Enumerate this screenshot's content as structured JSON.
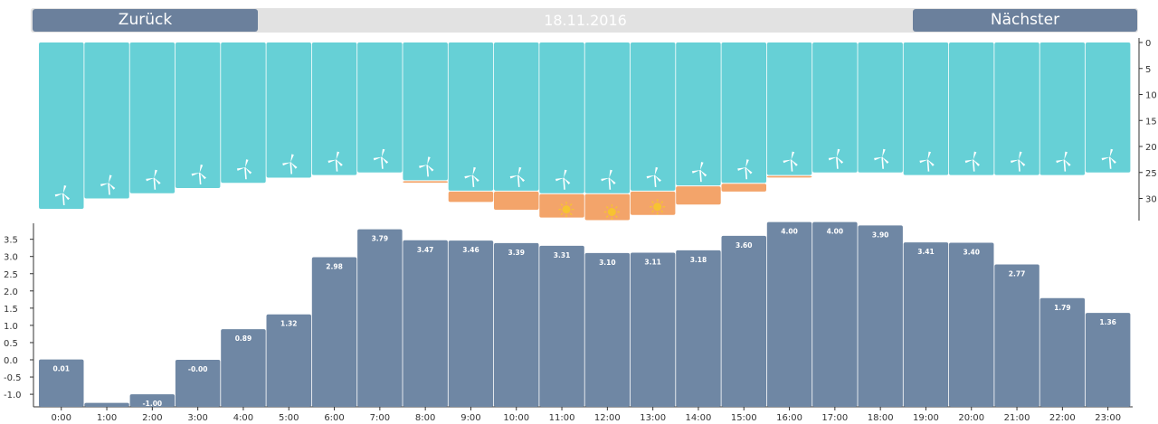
{
  "nav": {
    "back_label": "Zurück",
    "date": "18.11.2016",
    "next_label": "Nächster"
  },
  "colors": {
    "wind": "#66d0d6",
    "solar": "#f3a46a",
    "price": "#6f87a4",
    "sun_icon": "#f7c331",
    "nav_button": "#6b809c",
    "nav_bar": "#e2e2e2"
  },
  "chart_data": [
    {
      "type": "bar",
      "categories": [
        "0:00",
        "1:00",
        "2:00",
        "3:00",
        "4:00",
        "5:00",
        "6:00",
        "7:00",
        "8:00",
        "9:00",
        "10:00",
        "11:00",
        "12:00",
        "13:00",
        "14:00",
        "15:00",
        "16:00",
        "17:00",
        "18:00",
        "19:00",
        "20:00",
        "21:00",
        "22:00",
        "23:00"
      ],
      "series": [
        {
          "values": [
            32,
            30,
            29,
            28,
            27,
            26,
            25.5,
            25,
            26.5,
            28.5,
            28.5,
            29,
            29,
            28.5,
            27.5,
            27,
            25.5,
            25,
            25,
            25.5,
            25.5,
            25.5,
            25.5,
            25
          ]
        },
        {
          "values": [
            0,
            0,
            0,
            0,
            0,
            0,
            0,
            0,
            0.3,
            2,
            3.5,
            4.5,
            5,
            4.5,
            3.5,
            1.5,
            0.3,
            0,
            0,
            0,
            0,
            0,
            0,
            0
          ]
        }
      ],
      "stacked": true,
      "inverted_y": true,
      "yticks": [
        0,
        5,
        10,
        15,
        20,
        25,
        30
      ],
      "ylim": [
        0,
        34
      ],
      "icons": {
        "wind_turbine_icon": "all bars",
        "sun_icon": [
          "11:00",
          "12:00",
          "13:00"
        ]
      }
    },
    {
      "type": "bar",
      "categories": [
        "0:00",
        "1:00",
        "2:00",
        "3:00",
        "4:00",
        "5:00",
        "6:00",
        "7:00",
        "8:00",
        "9:00",
        "10:00",
        "11:00",
        "12:00",
        "13:00",
        "14:00",
        "15:00",
        "16:00",
        "17:00",
        "18:00",
        "19:00",
        "20:00",
        "21:00",
        "22:00",
        "23:00"
      ],
      "values": [
        0.01,
        -1.25,
        -1.0,
        -0.0,
        0.89,
        1.32,
        2.98,
        3.79,
        3.47,
        3.46,
        3.39,
        3.31,
        3.1,
        3.11,
        3.18,
        3.6,
        4.0,
        4.0,
        3.9,
        3.41,
        3.4,
        2.77,
        1.79,
        1.36
      ],
      "data_labels": [
        "0.01",
        "",
        "-1.00",
        "-0.00",
        "0.89",
        "1.32",
        "2.98",
        "3.79",
        "3.47",
        "3.46",
        "3.39",
        "3.31",
        "3.10",
        "3.11",
        "3.18",
        "3.60",
        "4.00",
        "4.00",
        "3.90",
        "3.41",
        "3.40",
        "2.77",
        "1.79",
        "1.36"
      ],
      "yticks": [
        "-1.0",
        "-0.5",
        "0.0",
        "0.5",
        "1.0",
        "1.5",
        "2.0",
        "2.5",
        "3.0",
        "3.5"
      ],
      "ylim": [
        -1.4,
        4.0
      ]
    }
  ]
}
